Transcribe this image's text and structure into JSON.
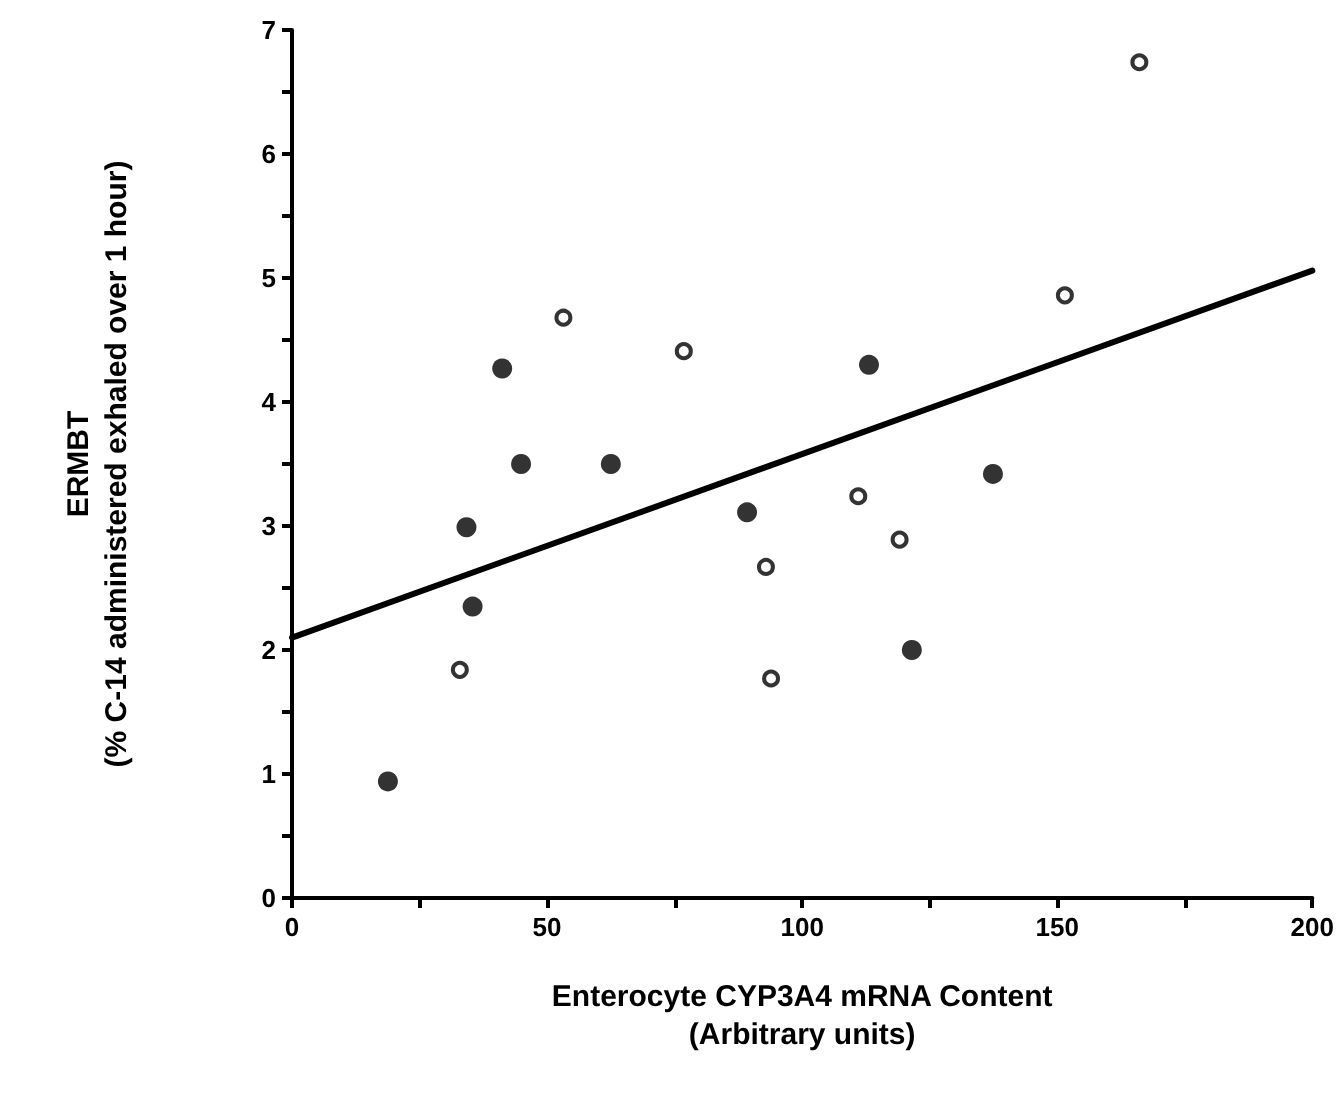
{
  "chart_data": {
    "type": "scatter",
    "xlabel": "Enterocyte CYP3A4 mRNA Content\n(Arbitrary units)",
    "ylabel": "ERMBT\n(% C-14 administered exhaled over 1 hour)",
    "xlim": [
      0,
      200
    ],
    "xticks": [
      0,
      {
        "value": 25,
        "label": null
      },
      50,
      {
        "value": 75,
        "label": null
      },
      100,
      {
        "value": 125,
        "label": null
      },
      150,
      {
        "value": 175,
        "label": null
      },
      200
    ],
    "ylim": [
      0,
      7
    ],
    "yticks": [
      0,
      {
        "value": 0.5,
        "label": null
      },
      1,
      {
        "value": 1.5,
        "label": null
      },
      2,
      {
        "value": 2.5,
        "label": null
      },
      3,
      {
        "value": 3.5,
        "label": null
      },
      4,
      {
        "value": 4.5,
        "label": null
      },
      5,
      {
        "value": 5.5,
        "label": null
      },
      6,
      {
        "value": 6.5,
        "label": null
      },
      7
    ],
    "grid": false,
    "series": [
      {
        "color": "#000000",
        "marker": "circle",
        "x": [
          18.8,
          34.2,
          35.4,
          41.2,
          44.9,
          62.5,
          89.2,
          113.1,
          121.5,
          137.4
        ],
        "values": [
          0.94,
          2.99,
          2.35,
          4.27,
          3.5,
          3.5,
          3.11,
          4.3,
          2.0,
          3.42
        ]
      },
      {
        "color": "#000000",
        "marker": "circle",
        "x": [
          32.9,
          53.2,
          76.8,
          92.9,
          93.9,
          111.0,
          119.1,
          151.5,
          166.1
        ],
        "values": [
          1.84,
          4.68,
          4.41,
          2.67,
          1.77,
          3.24,
          2.89,
          4.86,
          6.74
        ]
      },
      {
        "type": "line",
        "color": "#000000",
        "marker": "none",
        "line_style": "solid",
        "x": [
          0,
          200
        ],
        "values": [
          2.1,
          5.06
        ]
      }
    ]
  }
}
